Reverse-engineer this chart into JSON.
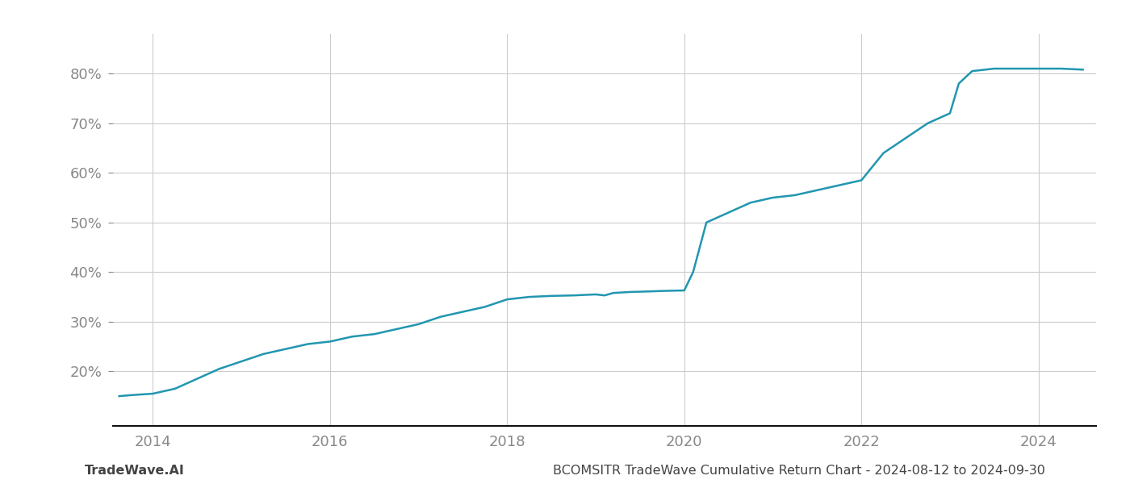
{
  "x_values": [
    2013.62,
    2013.75,
    2014.0,
    2014.25,
    2014.5,
    2014.75,
    2015.0,
    2015.25,
    2015.5,
    2015.75,
    2016.0,
    2016.25,
    2016.5,
    2016.75,
    2017.0,
    2017.25,
    2017.5,
    2017.75,
    2018.0,
    2018.25,
    2018.5,
    2018.75,
    2019.0,
    2019.1,
    2019.2,
    2019.4,
    2019.6,
    2019.75,
    2020.0,
    2020.1,
    2020.25,
    2020.5,
    2020.75,
    2021.0,
    2021.25,
    2021.5,
    2021.75,
    2022.0,
    2022.25,
    2022.5,
    2022.75,
    2023.0,
    2023.1,
    2023.25,
    2023.5,
    2023.75,
    2024.0,
    2024.25,
    2024.5
  ],
  "y_values": [
    15.0,
    15.2,
    15.5,
    16.5,
    18.5,
    20.5,
    22.0,
    23.5,
    24.5,
    25.5,
    26.0,
    27.0,
    27.5,
    28.5,
    29.5,
    31.0,
    32.0,
    33.0,
    34.5,
    35.0,
    35.2,
    35.3,
    35.5,
    35.3,
    35.8,
    36.0,
    36.1,
    36.2,
    36.3,
    40.0,
    50.0,
    52.0,
    54.0,
    55.0,
    55.5,
    56.5,
    57.5,
    58.5,
    64.0,
    67.0,
    70.0,
    72.0,
    78.0,
    80.5,
    81.0,
    81.0,
    81.0,
    81.0,
    80.8
  ],
  "line_color": "#2196b0",
  "line_width": 1.8,
  "xlim": [
    2013.55,
    2024.65
  ],
  "ylim": [
    9,
    88
  ],
  "yticks": [
    20,
    30,
    40,
    50,
    60,
    70,
    80
  ],
  "xticks": [
    2014,
    2016,
    2018,
    2020,
    2022,
    2024
  ],
  "footer_left": "TradeWave.AI",
  "footer_right": "BCOMSITR TradeWave Cumulative Return Chart - 2024-08-12 to 2024-09-30",
  "background_color": "#ffffff",
  "grid_color": "#cccccc",
  "tick_label_color": "#888888",
  "footer_color": "#444444",
  "footer_fontsize": 11.5,
  "tick_fontsize": 13
}
